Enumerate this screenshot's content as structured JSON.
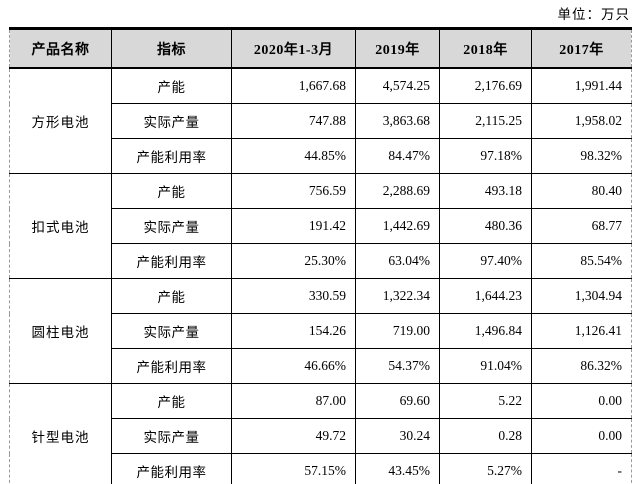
{
  "unit_label": "单位：万只",
  "colors": {
    "header_bg": "#d8d8d8",
    "border": "#000000",
    "edge_dashed": "#9a9a9a",
    "text": "#000000"
  },
  "table": {
    "headers": [
      "产品名称",
      "指标",
      "2020年1-3月",
      "2019年",
      "2018年",
      "2017年"
    ],
    "groups": [
      {
        "product": "方形电池",
        "rows": [
          {
            "indicator": "产能",
            "values": [
              "1,667.68",
              "4,574.25",
              "2,176.69",
              "1,991.44"
            ]
          },
          {
            "indicator": "实际产量",
            "values": [
              "747.88",
              "3,863.68",
              "2,115.25",
              "1,958.02"
            ]
          },
          {
            "indicator": "产能利用率",
            "values": [
              "44.85%",
              "84.47%",
              "97.18%",
              "98.32%"
            ]
          }
        ]
      },
      {
        "product": "扣式电池",
        "rows": [
          {
            "indicator": "产能",
            "values": [
              "756.59",
              "2,288.69",
              "493.18",
              "80.40"
            ]
          },
          {
            "indicator": "实际产量",
            "values": [
              "191.42",
              "1,442.69",
              "480.36",
              "68.77"
            ]
          },
          {
            "indicator": "产能利用率",
            "values": [
              "25.30%",
              "63.04%",
              "97.40%",
              "85.54%"
            ]
          }
        ]
      },
      {
        "product": "圆柱电池",
        "rows": [
          {
            "indicator": "产能",
            "values": [
              "330.59",
              "1,322.34",
              "1,644.23",
              "1,304.94"
            ]
          },
          {
            "indicator": "实际产量",
            "values": [
              "154.26",
              "719.00",
              "1,496.84",
              "1,126.41"
            ]
          },
          {
            "indicator": "产能利用率",
            "values": [
              "46.66%",
              "54.37%",
              "91.04%",
              "86.32%"
            ]
          }
        ]
      },
      {
        "product": "针型电池",
        "rows": [
          {
            "indicator": "产能",
            "values": [
              "87.00",
              "69.60",
              "5.22",
              "0.00"
            ]
          },
          {
            "indicator": "实际产量",
            "values": [
              "49.72",
              "30.24",
              "0.28",
              "0.00"
            ]
          },
          {
            "indicator": "产能利用率",
            "values": [
              "57.15%",
              "43.45%",
              "5.27%",
              "-"
            ]
          }
        ]
      }
    ]
  }
}
